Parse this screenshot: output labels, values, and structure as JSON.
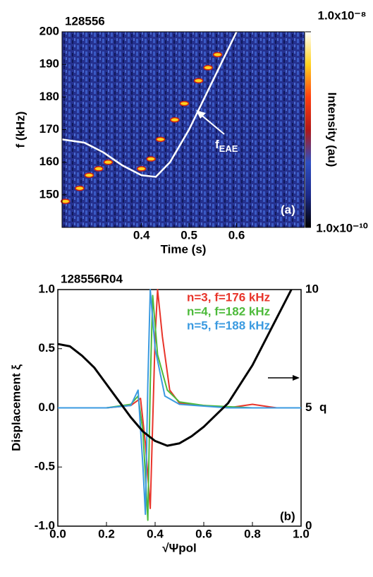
{
  "chart_data": [
    {
      "type": "spectrogram",
      "title": "128556",
      "xlabel": "Time (s)",
      "ylabel": "f (kHz)",
      "annotation": "f",
      "annotation_sub": "EAE",
      "panel_label": "(a)",
      "xlim": [
        0.233,
        0.743
      ],
      "xticks": [
        0.4,
        0.5,
        0.6
      ],
      "ylim": [
        140,
        200
      ],
      "yticks": [
        150,
        160,
        170,
        180,
        190,
        200
      ],
      "series": [
        {
          "color": "#ffffff",
          "x": [
            0.233,
            0.28,
            0.32,
            0.36,
            0.4,
            0.43,
            0.46,
            0.5,
            0.54,
            0.58,
            0.6
          ],
          "values": [
            167,
            166,
            163,
            159,
            156,
            155.5,
            160,
            170,
            182,
            194,
            200
          ]
        }
      ],
      "points": {
        "color": "#ffd21e",
        "x": [
          0.24,
          0.27,
          0.29,
          0.31,
          0.33,
          0.4,
          0.42,
          0.44,
          0.47,
          0.49,
          0.52,
          0.54,
          0.56
        ],
        "values": [
          148,
          152,
          156,
          158,
          160,
          158,
          161,
          167,
          173,
          178,
          185,
          189,
          193
        ]
      },
      "colorbar": {
        "label": "Intensity (au)",
        "colors": [
          "#000000",
          "#1c2a8a",
          "#2f4fc0",
          "#b01818",
          "#ff4010",
          "#ffd21e",
          "#ffffff"
        ],
        "ticks": [
          {
            "value": 1e-10,
            "label": "1.0x10⁻¹⁰"
          },
          {
            "value": 1e-08,
            "label": "1.0x10⁻⁸"
          }
        ]
      }
    },
    {
      "type": "line",
      "title": "128556R04",
      "xlabel": "√Ψpol",
      "ylabel": "Displacement ξ",
      "y2label": "q",
      "panel_label": "(b)",
      "xlim": [
        0,
        1
      ],
      "xticks": [
        {
          "value": 0,
          "label": "0.0"
        },
        0.2,
        0.4,
        0.6,
        0.8,
        {
          "value": 1,
          "label": "1.0"
        }
      ],
      "ylim": [
        -1,
        1
      ],
      "yticks": [
        {
          "value": -1,
          "label": "-1.0"
        },
        -0.5,
        {
          "value": 0,
          "label": "0.0"
        },
        0.5,
        {
          "value": 1,
          "label": "1.0"
        }
      ],
      "y2lim": [
        0,
        10
      ],
      "y2ticks": [
        0,
        5,
        10
      ],
      "series": [
        {
          "name": "n=3, f=176  kHz",
          "color": "#e8342a",
          "x": [
            0,
            0.2,
            0.3,
            0.34,
            0.36,
            0.38,
            0.4,
            0.41,
            0.43,
            0.46,
            0.5,
            0.6,
            0.7,
            0.8,
            0.9,
            1.0
          ],
          "values": [
            0,
            0,
            0.02,
            0.08,
            -0.3,
            -0.85,
            0.6,
            1.0,
            0.6,
            0.15,
            0.04,
            0.02,
            0,
            0.03,
            0,
            0
          ]
        },
        {
          "name": "n=4, f=182  kHz",
          "color": "#4cba3a",
          "x": [
            0,
            0.2,
            0.3,
            0.33,
            0.35,
            0.37,
            0.38,
            0.39,
            0.41,
            0.45,
            0.5,
            0.6,
            0.8,
            1.0
          ],
          "values": [
            0,
            0,
            0.03,
            0.1,
            -0.2,
            -0.95,
            0.2,
            0.95,
            0.45,
            0.15,
            0.05,
            0.02,
            0,
            0
          ]
        },
        {
          "name": "n=5, f=188  kHz",
          "color": "#3a9ae0",
          "x": [
            0,
            0.2,
            0.3,
            0.33,
            0.35,
            0.36,
            0.37,
            0.38,
            0.4,
            0.44,
            0.5,
            0.7,
            1.0
          ],
          "values": [
            0,
            0,
            0.02,
            0.15,
            -0.5,
            -0.9,
            0.2,
            1.0,
            0.5,
            0.1,
            0.03,
            0,
            0
          ]
        },
        {
          "color": "#000000",
          "axis": "y2",
          "x": [
            0,
            0.05,
            0.1,
            0.15,
            0.2,
            0.25,
            0.3,
            0.35,
            0.4,
            0.45,
            0.5,
            0.55,
            0.6,
            0.7,
            0.8,
            0.9,
            0.96
          ],
          "values": [
            7.7,
            7.6,
            7.2,
            6.7,
            6,
            5.3,
            4.6,
            4.0,
            3.6,
            3.4,
            3.5,
            3.8,
            4.2,
            5.2,
            6.8,
            8.8,
            10
          ]
        }
      ]
    }
  ]
}
